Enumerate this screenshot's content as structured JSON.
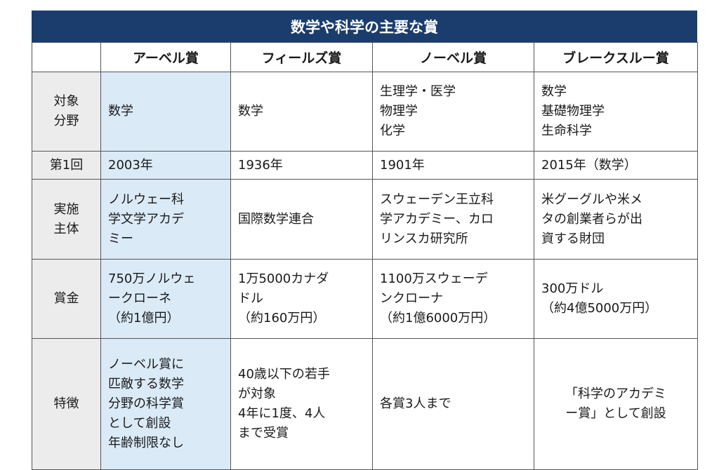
{
  "title": "数学や科学の主要な賞",
  "header": [
    "",
    "アーベル賞",
    "フィールズ賞",
    "ノーベル賞",
    "ブレークスルー賞"
  ],
  "rows": [
    {
      "label": "対象\n分野",
      "cells": [
        "数学",
        "数学",
        "生理学・医学\n物理学\n化学",
        "数学\n基礎物理学\n生命科学"
      ]
    },
    {
      "label": "第1回",
      "cells": [
        "2003年",
        "1936年",
        "1901年",
        "2015年（数学）"
      ]
    },
    {
      "label": "実施\n主体",
      "cells": [
        "ノルウェー科\n学文学アカデ\nミー",
        "国際数学連合",
        "スウェーデン王立科\n学アカデミー、カロ\nリンスカ研究所",
        "米グーグルや米メ\nタの創業者らが出\n資する財団"
      ]
    },
    {
      "label": "賞金",
      "cells": [
        "750万ノルウェ\nークローネ\n（約1億円）",
        "1万5000カナダ\nドル\n（約160万円）",
        "1100万スウェーデ\nンクローナ\n（約1億6000万円）",
        "300万ドル\n（約4億5000万円）"
      ]
    },
    {
      "label": "特徴",
      "cells": [
        "ノーベル賞に\n匹敵する数学\n分野の科学賞\nとして創設\n年齢制限なし",
        "40歳以下の若手\nが対象\n4年に1度、4人\nまで受賞",
        "各賞3人まで",
        "「科学のアカデミ\nー賞」として創設"
      ]
    }
  ]
}
